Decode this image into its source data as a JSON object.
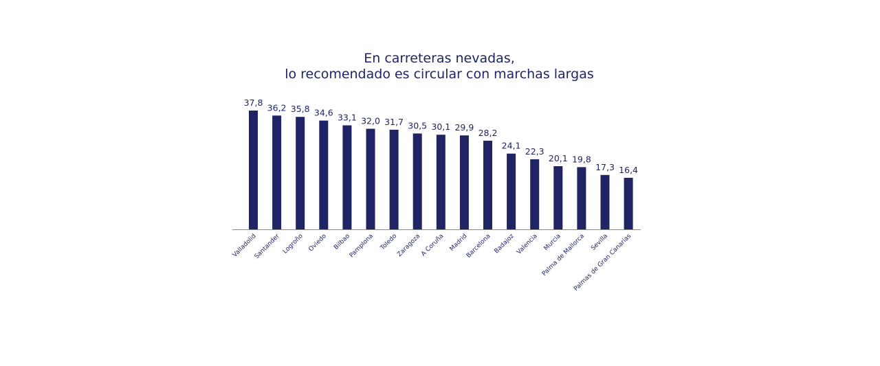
{
  "chart_data": {
    "type": "bar",
    "title": "En carreteras nevadas,\nlo recomendado es circular con marchas largas",
    "title_lines": [
      "En carreteras nevadas,",
      "lo recomendado es circular con marchas largas"
    ],
    "categories": [
      "Valladolid",
      "Santander",
      "Logroño",
      "Oviedo",
      "Bilbao",
      "Pamplona",
      "Toledo",
      "Zaragoza",
      "A Coruña",
      "Madrid",
      "Barcelona",
      "Badajoz",
      "Valencia",
      "Murcia",
      "Palma de Mallorca",
      "Sevilla",
      "Palmas de Gran Canarias"
    ],
    "values": [
      37.8,
      36.2,
      35.8,
      34.6,
      33.1,
      32.0,
      31.7,
      30.5,
      30.1,
      29.9,
      28.2,
      24.1,
      22.3,
      20.1,
      19.8,
      17.3,
      16.4
    ],
    "value_labels": [
      "37,8",
      "36,2",
      "35,8",
      "34,6",
      "33,1",
      "32,0",
      "31,7",
      "30,5",
      "30,1",
      "29,9",
      "28,2",
      "24,1",
      "22,3",
      "20,1",
      "19,8",
      "17,3",
      "16,4"
    ],
    "xlabel": "",
    "ylabel": "",
    "ylim": [
      0,
      37.8
    ],
    "grid": false,
    "legend": "none",
    "colors": {
      "bar": "#1e2464",
      "axis": "#8a8a8a",
      "text": "#1e2464"
    }
  }
}
